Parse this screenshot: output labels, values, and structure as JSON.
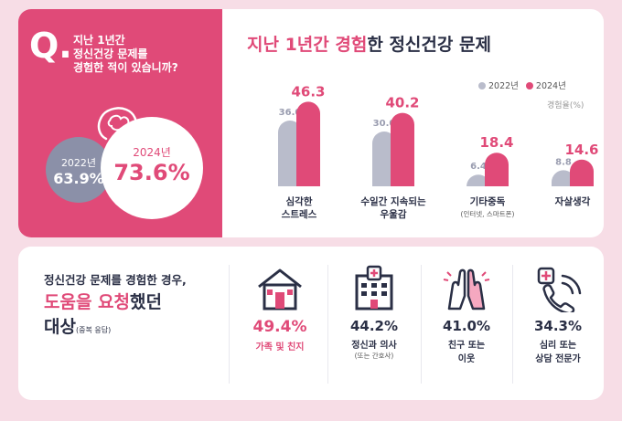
{
  "question": {
    "letter": "Q.",
    "line1": "지난 1년간",
    "line2": "정신건강 문제를",
    "line3": "경험한 적이 있습니까?",
    "year_2022": "2022년",
    "value_2022": "63.9%",
    "year_2024": "2024년",
    "value_2024": "73.6%"
  },
  "chart_title": {
    "part1": "지난 1년간 경험",
    "part2": "한 ",
    "part3": "정신건강 문제"
  },
  "colors": {
    "pink": "#e04a78",
    "gray": "#b9bccb",
    "dark": "#2a2f45"
  },
  "chart_data": {
    "type": "bar",
    "unit": "경험율(%)",
    "categories": [
      {
        "line1": "심각한",
        "line2": "스트레스",
        "sub": ""
      },
      {
        "line1": "수일간 지속되는",
        "line2": "우울감",
        "sub": ""
      },
      {
        "line1": "기타중독",
        "line2": "",
        "sub": "(인터넷, 스마트폰)"
      },
      {
        "line1": "자살생각",
        "line2": "",
        "sub": ""
      }
    ],
    "series": [
      {
        "name": "2022년",
        "values": [
          36.0,
          30.0,
          6.4,
          8.8
        ]
      },
      {
        "name": "2024년",
        "values": [
          46.3,
          40.2,
          18.4,
          14.6
        ]
      }
    ],
    "value_labels_2022": [
      "36.0",
      "30.0",
      "6.4",
      "8.8"
    ],
    "value_labels_2024": [
      "46.3",
      "40.2",
      "18.4",
      "14.6"
    ],
    "ylim": [
      0,
      50
    ]
  },
  "help": {
    "line1": "정신건강 문제를 경험한 경우,",
    "line2a": "도움을 요청",
    "line2b": "했던",
    "line3a": "대상",
    "line3b": "(중복 응답)",
    "items": [
      {
        "icon": "house-icon",
        "value": "49.4%",
        "label1": "가족 및 친지",
        "label2": "",
        "sub": ""
      },
      {
        "icon": "hospital-icon",
        "value": "44.2%",
        "label1": "정신과 의사",
        "label2": "",
        "sub": "(또는 간호사)"
      },
      {
        "icon": "high-five-icon",
        "value": "41.0%",
        "label1": "친구 또는",
        "label2": "이웃",
        "sub": ""
      },
      {
        "icon": "phone-cross-icon",
        "value": "34.3%",
        "label1": "심리 또는",
        "label2": "상담 전문가",
        "sub": ""
      }
    ]
  }
}
